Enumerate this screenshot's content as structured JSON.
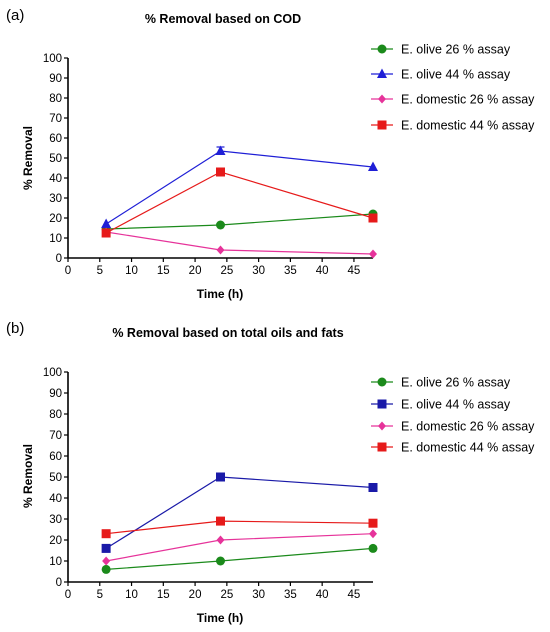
{
  "chart_data": [
    {
      "label": "(a)",
      "type": "line",
      "title": "% Removal based on COD",
      "xlabel": "Time  (h)",
      "ylabel": "% Removal",
      "xlim": [
        0,
        48
      ],
      "ylim": [
        0,
        100
      ],
      "xticks": [
        "0",
        "5",
        "10",
        "15",
        "20",
        "25",
        "30",
        "35",
        "40",
        "45"
      ],
      "yticks": [
        "0",
        "10",
        "20",
        "30",
        "40",
        "50",
        "60",
        "70",
        "80",
        "90",
        "100"
      ],
      "x": [
        6,
        24,
        48
      ],
      "series": [
        {
          "name": "E. olive 26 % assay",
          "values": [
            14.5,
            16.5,
            22
          ],
          "color": "#1b8a1b",
          "marker": "circle"
        },
        {
          "name": "E. olive 44 % assay",
          "values": [
            17,
            53.5,
            45.5
          ],
          "color": "#1f1fd6",
          "marker": "triangle",
          "error": [
            0,
            2,
            0
          ]
        },
        {
          "name": "E. domestic 26 % assay",
          "values": [
            13,
            4,
            2
          ],
          "color": "#e6339a",
          "marker": "diamond"
        },
        {
          "name": "E. domestic 44 % assay",
          "values": [
            12.5,
            43,
            20
          ],
          "color": "#e61a1a",
          "marker": "square"
        }
      ],
      "legend": "right"
    },
    {
      "label": "(b)",
      "type": "line",
      "title": "% Removal based on total oils and fats",
      "xlabel": "Time  (h)",
      "ylabel": "% Removal",
      "xlim": [
        0,
        48
      ],
      "ylim": [
        0,
        100
      ],
      "xticks": [
        "0",
        "5",
        "10",
        "15",
        "20",
        "25",
        "30",
        "35",
        "40",
        "45"
      ],
      "yticks": [
        "0",
        "10",
        "20",
        "30",
        "40",
        "50",
        "60",
        "70",
        "80",
        "90",
        "100"
      ],
      "x": [
        6,
        24,
        48
      ],
      "series": [
        {
          "name": "E. olive 26 % assay",
          "values": [
            6,
            10,
            16
          ],
          "color": "#1b8a1b",
          "marker": "circle"
        },
        {
          "name": "E. olive 44 % assay",
          "values": [
            16,
            50,
            45
          ],
          "color": "#1a1aa8",
          "marker": "square"
        },
        {
          "name": "E. domestic 26 % assay",
          "values": [
            10,
            20,
            23
          ],
          "color": "#e6339a",
          "marker": "diamond"
        },
        {
          "name": "E. domestic 44 % assay",
          "values": [
            23,
            29,
            28
          ],
          "color": "#e61a1a",
          "marker": "square"
        }
      ],
      "legend": "right"
    }
  ]
}
